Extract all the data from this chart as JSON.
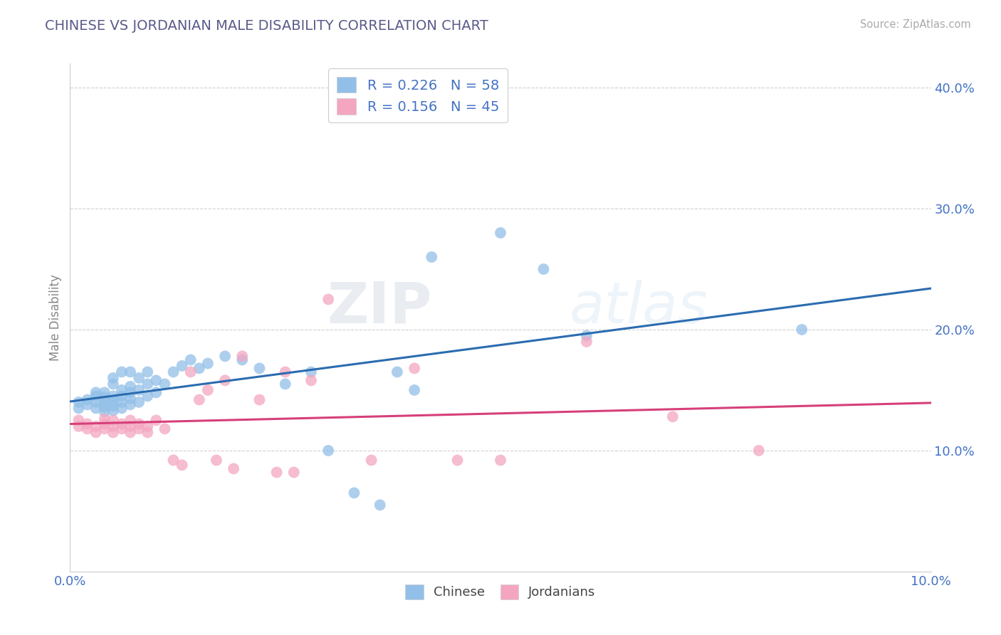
{
  "title": "CHINESE VS JORDANIAN MALE DISABILITY CORRELATION CHART",
  "source": "Source: ZipAtlas.com",
  "ylabel_label": "Male Disability",
  "xlim": [
    0.0,
    0.1
  ],
  "ylim": [
    0.0,
    0.42
  ],
  "chinese_color": "#92bfe8",
  "jordanian_color": "#f4a6c0",
  "chinese_line_color": "#2b6cb0",
  "jordanian_line_color": "#d63f7a",
  "chinese_R": 0.226,
  "chinese_N": 58,
  "jordanian_R": 0.156,
  "jordanian_N": 45,
  "chinese_scatter_x": [
    0.001,
    0.001,
    0.002,
    0.002,
    0.003,
    0.003,
    0.003,
    0.003,
    0.004,
    0.004,
    0.004,
    0.004,
    0.004,
    0.005,
    0.005,
    0.005,
    0.005,
    0.005,
    0.005,
    0.006,
    0.006,
    0.006,
    0.006,
    0.006,
    0.007,
    0.007,
    0.007,
    0.007,
    0.007,
    0.008,
    0.008,
    0.008,
    0.009,
    0.009,
    0.009,
    0.01,
    0.01,
    0.011,
    0.012,
    0.013,
    0.014,
    0.015,
    0.016,
    0.018,
    0.02,
    0.022,
    0.025,
    0.028,
    0.03,
    0.033,
    0.036,
    0.038,
    0.04,
    0.042,
    0.05,
    0.055,
    0.06,
    0.085
  ],
  "chinese_scatter_y": [
    0.135,
    0.14,
    0.138,
    0.142,
    0.135,
    0.14,
    0.145,
    0.148,
    0.132,
    0.136,
    0.14,
    0.144,
    0.148,
    0.133,
    0.137,
    0.141,
    0.145,
    0.155,
    0.16,
    0.135,
    0.14,
    0.145,
    0.15,
    0.165,
    0.138,
    0.143,
    0.148,
    0.153,
    0.165,
    0.14,
    0.15,
    0.16,
    0.145,
    0.155,
    0.165,
    0.148,
    0.158,
    0.155,
    0.165,
    0.17,
    0.175,
    0.168,
    0.172,
    0.178,
    0.175,
    0.168,
    0.155,
    0.165,
    0.1,
    0.065,
    0.055,
    0.165,
    0.15,
    0.26,
    0.28,
    0.25,
    0.195,
    0.2
  ],
  "jordanian_scatter_x": [
    0.001,
    0.001,
    0.002,
    0.002,
    0.003,
    0.003,
    0.004,
    0.004,
    0.004,
    0.005,
    0.005,
    0.005,
    0.006,
    0.006,
    0.007,
    0.007,
    0.007,
    0.008,
    0.008,
    0.009,
    0.009,
    0.01,
    0.011,
    0.012,
    0.013,
    0.014,
    0.015,
    0.016,
    0.017,
    0.018,
    0.019,
    0.02,
    0.022,
    0.024,
    0.025,
    0.026,
    0.028,
    0.03,
    0.035,
    0.04,
    0.045,
    0.05,
    0.06,
    0.07,
    0.08
  ],
  "jordanian_scatter_y": [
    0.12,
    0.125,
    0.118,
    0.122,
    0.115,
    0.12,
    0.118,
    0.122,
    0.126,
    0.115,
    0.12,
    0.125,
    0.118,
    0.122,
    0.115,
    0.12,
    0.125,
    0.118,
    0.122,
    0.115,
    0.12,
    0.125,
    0.118,
    0.092,
    0.088,
    0.165,
    0.142,
    0.15,
    0.092,
    0.158,
    0.085,
    0.178,
    0.142,
    0.082,
    0.165,
    0.082,
    0.158,
    0.225,
    0.092,
    0.168,
    0.092,
    0.092,
    0.19,
    0.128,
    0.1
  ],
  "watermark_zip": "ZIP",
  "watermark_atlas": "atlas",
  "background_color": "#ffffff",
  "grid_color": "#cccccc",
  "title_color": "#5a5a8a",
  "axis_label_color": "#888888",
  "tick_label_color": "#4472c4",
  "legend_text_color": "#4472c4",
  "bottom_legend_color": "#444444"
}
